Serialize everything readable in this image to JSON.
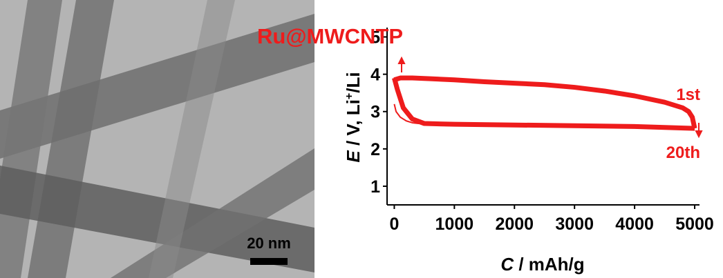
{
  "chart_data": {
    "type": "line",
    "annotations": [
      "Ru@MWCNTP",
      "1st",
      "20th"
    ],
    "scale_bar": "20 nm",
    "x_label": [
      "C",
      " / mAh/g"
    ],
    "y_label": [
      "E",
      " / V, Li",
      "+",
      "/Li"
    ],
    "xlim": [
      -120,
      5080
    ],
    "xticks": [
      0,
      1000,
      2000,
      3000,
      4000,
      5000
    ],
    "ylim": [
      0.5,
      5.25
    ],
    "yticks": [
      1,
      2,
      3,
      4,
      5
    ],
    "series": [
      {
        "color": "#ee1c1c",
        "linewidth": 7,
        "x": [
          0,
          100,
          300,
          600,
          1000,
          1500,
          2000,
          2500,
          3000,
          3500,
          4000,
          4500,
          4800,
          4900,
          4960,
          5000
        ],
        "values": [
          3.85,
          3.9,
          3.9,
          3.88,
          3.85,
          3.8,
          3.76,
          3.72,
          3.65,
          3.55,
          3.42,
          3.25,
          3.1,
          3.0,
          2.85,
          2.55
        ]
      },
      {
        "color": "#ee1c1c",
        "linewidth": 7,
        "x": [
          0,
          50,
          150,
          300,
          500,
          1000,
          2000,
          3000,
          4000,
          5000
        ],
        "values": [
          3.9,
          3.6,
          3.1,
          2.8,
          2.68,
          2.66,
          2.64,
          2.62,
          2.6,
          2.55
        ]
      },
      {
        "color": "#ee1c1c",
        "linewidth": 2,
        "x": [
          0,
          30,
          100,
          200,
          300,
          400,
          600
        ],
        "values": [
          3.2,
          3.0,
          2.85,
          2.75,
          2.7,
          2.68,
          2.66
        ]
      }
    ]
  }
}
